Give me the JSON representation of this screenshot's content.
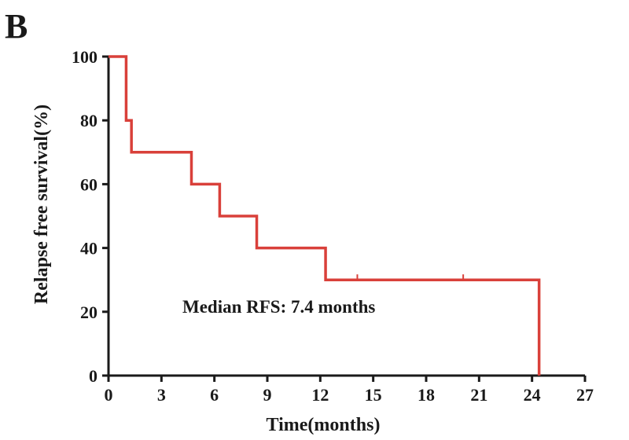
{
  "panel_label": "B",
  "colors": {
    "curve": "#d9403a",
    "axis": "#1a1a1a"
  },
  "chart_data": {
    "type": "line",
    "subtype": "kaplan-meier step",
    "xlabel": "Time(months)",
    "ylabel": "Relapse free survival(%)",
    "xlim": [
      0,
      27
    ],
    "ylim": [
      0,
      100
    ],
    "xticks": [
      0,
      3,
      6,
      9,
      12,
      15,
      18,
      21,
      24,
      27
    ],
    "yticks": [
      0,
      20,
      40,
      60,
      80,
      100
    ],
    "grid": false,
    "series": [
      {
        "x": [
          0,
          1.0,
          1.3,
          4.7,
          6.3,
          8.4,
          12.3,
          24.4
        ],
        "y": [
          100,
          80,
          70,
          60,
          50,
          40,
          30,
          0
        ],
        "censored_x": [
          14.1,
          20.1
        ],
        "censored_y": [
          30,
          30
        ]
      }
    ],
    "annotations": [
      {
        "text": "Median RFS: 7.4 months"
      }
    ]
  }
}
